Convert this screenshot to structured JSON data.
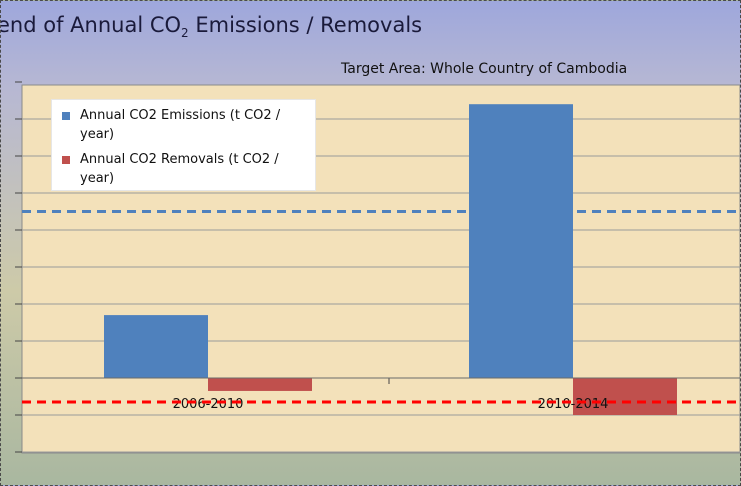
{
  "title_parts": {
    "prefix": "end of  Annual CO",
    "sub": "2",
    "suffix": " Emissions / Removals"
  },
  "subtitle": "Target Area: Whole Country of  Cambodia",
  "colors": {
    "emissions": "#4f81bd",
    "removals": "#c0504d",
    "emissions_reference_line": "#4f81bd",
    "removals_reference_line": "#ff0000",
    "grid": "#9a9a9a"
  },
  "chart_data": {
    "type": "bar",
    "categories": [
      "2006-2010",
      "2010-2014"
    ],
    "series": [
      {
        "name": "Annual CO2 Emissions (t CO2 / year)",
        "values": [
          1.7,
          7.4
        ]
      },
      {
        "name": "Annual CO2 Removals (t CO2 / year)",
        "values": [
          -0.35,
          -1.0
        ]
      }
    ],
    "reference_lines": [
      {
        "value": 4.5,
        "style": "dashed",
        "color": "#4f81bd"
      },
      {
        "value": -0.65,
        "style": "dashed",
        "color": "#ff0000"
      }
    ],
    "ylim": [
      -2,
      8
    ],
    "gridlines": [
      -2,
      -1,
      0,
      1,
      2,
      3,
      4,
      5,
      6,
      7,
      8
    ],
    "grid": true,
    "legend_position": "top-left",
    "xlabel": "",
    "ylabel": ""
  }
}
